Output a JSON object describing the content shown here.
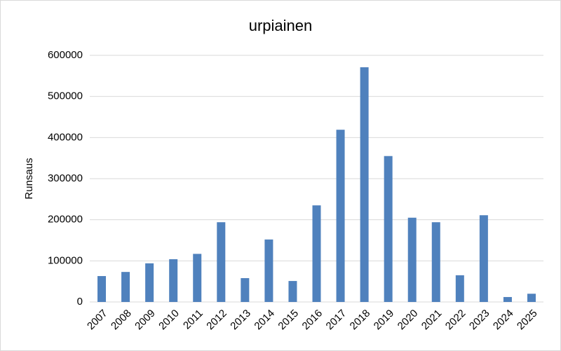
{
  "chart_data": {
    "type": "bar",
    "title": "urpiainen",
    "y_label": "Runsaus",
    "categories": [
      "2007",
      "2008",
      "2009",
      "2010",
      "2011",
      "2012",
      "2013",
      "2014",
      "2015",
      "2016",
      "2017",
      "2018",
      "2019",
      "2020",
      "2021",
      "2022",
      "2023",
      "2024",
      "2025"
    ],
    "values": [
      63000,
      73000,
      94000,
      104000,
      117000,
      194000,
      58000,
      152000,
      51000,
      235000,
      419000,
      571000,
      355000,
      205000,
      194000,
      65000,
      211000,
      12000,
      20000
    ],
    "color": "#4f81bd",
    "ylim": [
      0,
      600000
    ],
    "yticks": [
      0,
      100000,
      200000,
      300000,
      400000,
      500000,
      600000
    ],
    "grid": true
  }
}
